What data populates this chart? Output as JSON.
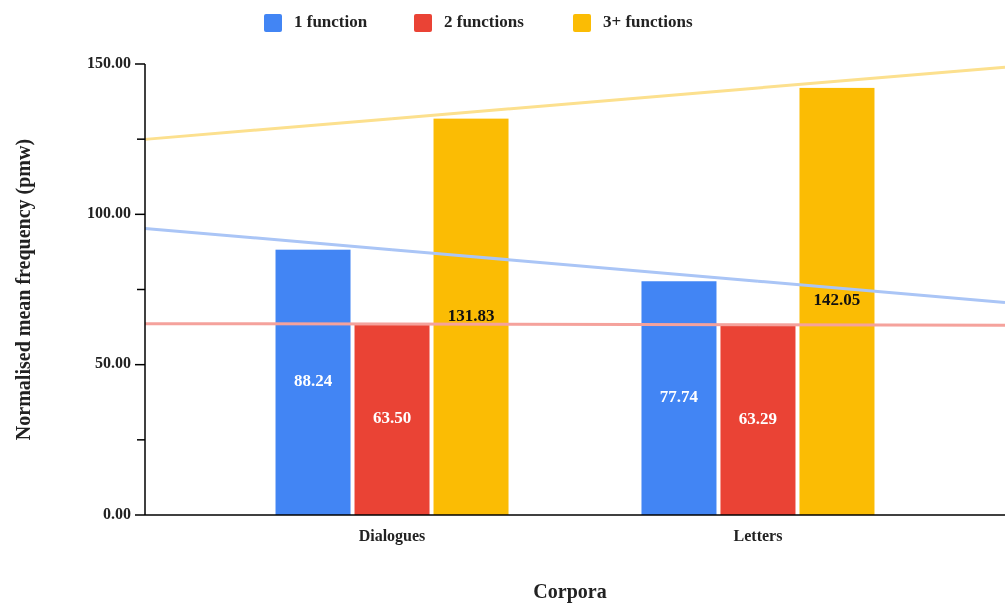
{
  "chart_data": {
    "type": "bar",
    "xlabel": "Corpora",
    "ylabel": "Normalised mean frequency (pmw)",
    "categories": [
      "Dialogues",
      "Letters"
    ],
    "series": [
      {
        "name": "1 function",
        "color": "#4285f4",
        "values": [
          88.24,
          77.74
        ],
        "value_labels": [
          "88.24",
          "77.74"
        ]
      },
      {
        "name": "2 functions",
        "color": "#ea4335",
        "values": [
          63.5,
          63.29
        ],
        "value_labels": [
          "63.50",
          "63.29"
        ]
      },
      {
        "name": "3+ functions",
        "color": "#fbbc04",
        "values": [
          131.83,
          142.05
        ],
        "value_labels": [
          "131.83",
          "142.05"
        ]
      },
      {
        "type": "line",
        "color": "#aac5f6",
        "x": [
          "Dialogues",
          "Letters"
        ],
        "values": [
          88.24,
          77.74
        ]
      },
      {
        "type": "line",
        "color": "#f5a29c",
        "x": [
          "Dialogues",
          "Letters"
        ],
        "values": [
          63.5,
          63.29
        ]
      },
      {
        "type": "line",
        "color": "#fce08e",
        "x": [
          "Dialogues",
          "Letters"
        ],
        "values": [
          131.83,
          142.05
        ]
      }
    ],
    "ylim": [
      0,
      150
    ],
    "yticks": [
      {
        "value": 0,
        "label": "0.00"
      },
      {
        "value": 25,
        "label": null
      },
      {
        "value": 50,
        "label": "50.00"
      },
      {
        "value": 75,
        "label": null
      },
      {
        "value": 100,
        "label": "100.00"
      },
      {
        "value": 125,
        "label": null
      },
      {
        "value": 150,
        "label": "150.00"
      }
    ],
    "legend": "top",
    "grid": false
  }
}
